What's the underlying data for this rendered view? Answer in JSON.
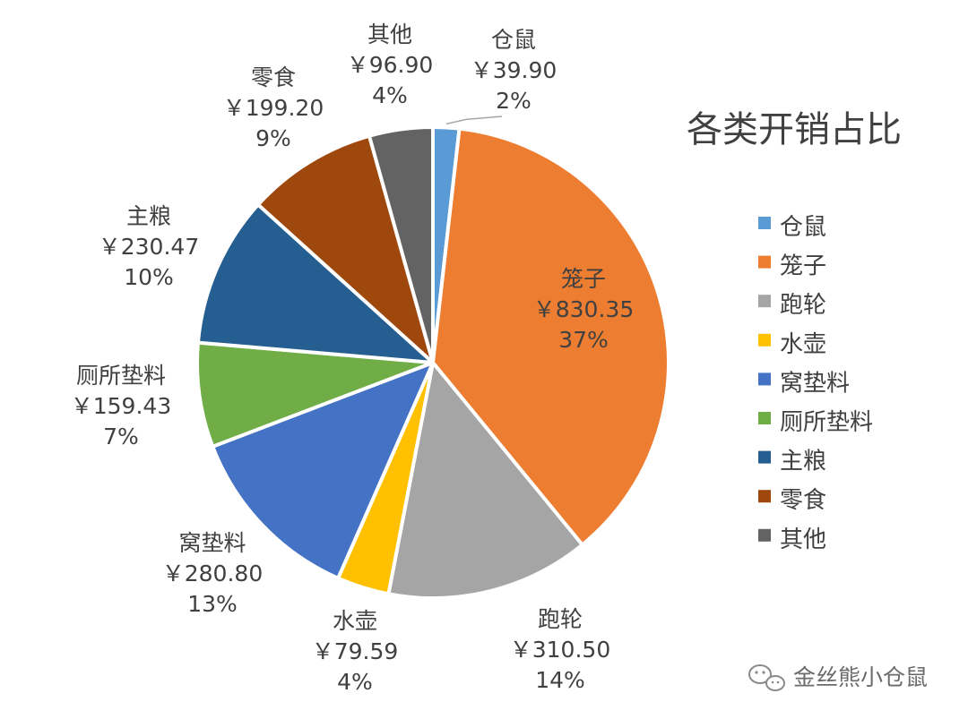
{
  "chart_data": {
    "type": "pie",
    "title": "各类开销占比",
    "legend_position": "right",
    "slices": [
      {
        "name": "仓鼠",
        "value_label": "￥39.90",
        "value": 39.9,
        "percent_label": "2%",
        "color": "#5B9BD5"
      },
      {
        "name": "笼子",
        "value_label": "￥830.35",
        "value": 830.35,
        "percent_label": "37%",
        "color": "#ED7D31"
      },
      {
        "name": "跑轮",
        "value_label": "￥310.50",
        "value": 310.5,
        "percent_label": "14%",
        "color": "#A5A5A5"
      },
      {
        "name": "水壶",
        "value_label": "￥79.59",
        "value": 79.59,
        "percent_label": "4%",
        "color": "#FFC000"
      },
      {
        "name": "窝垫料",
        "value_label": "￥280.80",
        "value": 280.8,
        "percent_label": "13%",
        "color": "#4472C4"
      },
      {
        "name": "厕所垫料",
        "value_label": "￥159.43",
        "value": 159.43,
        "percent_label": "7%",
        "color": "#70AD47"
      },
      {
        "name": "主粮",
        "value_label": "￥230.47",
        "value": 230.47,
        "percent_label": "10%",
        "color": "#255E91"
      },
      {
        "name": "零食",
        "value_label": "￥199.20",
        "value": 199.2,
        "percent_label": "9%",
        "color": "#9E480E"
      },
      {
        "name": "其他",
        "value_label": "￥96.90",
        "value": 96.9,
        "percent_label": "4%",
        "color": "#636363"
      }
    ]
  },
  "watermark": {
    "text": "金丝熊小仓鼠",
    "icon": "wechat-icon"
  }
}
